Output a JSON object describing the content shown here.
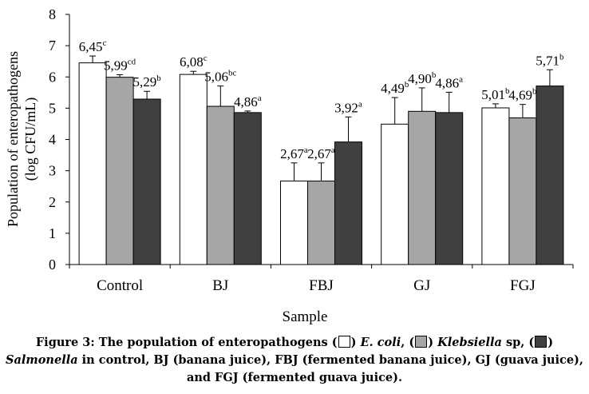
{
  "chart_data": {
    "type": "bar",
    "categories": [
      "Control",
      "BJ",
      "FBJ",
      "GJ",
      "FGJ"
    ],
    "series": [
      {
        "name": "E. coli",
        "color": "#ffffff",
        "values": [
          6.45,
          6.08,
          2.67,
          4.49,
          5.01
        ],
        "errors": [
          0.22,
          0.1,
          0.58,
          0.85,
          0.13
        ],
        "labels": [
          "6,45",
          "6,08",
          "2,67",
          "4,49",
          "5,01"
        ],
        "letters": [
          "c",
          "c",
          "a",
          "b",
          "b"
        ]
      },
      {
        "name": "Klebsiella sp",
        "color": "#a6a6a6",
        "values": [
          5.99,
          5.06,
          2.67,
          4.9,
          4.69
        ],
        "errors": [
          0.08,
          0.65,
          0.58,
          0.75,
          0.43
        ],
        "labels": [
          "5,99",
          "5,06",
          "2,67",
          "4,90",
          "4,69"
        ],
        "letters": [
          "cd",
          "bc",
          "a",
          "b",
          "b"
        ]
      },
      {
        "name": "Salmonella",
        "color": "#404040",
        "values": [
          5.29,
          4.86,
          3.92,
          4.86,
          5.71
        ],
        "errors": [
          0.25,
          0.05,
          0.8,
          0.65,
          0.52
        ],
        "labels": [
          "5,29",
          "4,86",
          "3,92",
          "4,86",
          "5,71"
        ],
        "letters": [
          "b",
          "a",
          "a",
          "a",
          "b"
        ]
      }
    ],
    "yticks": [
      "0",
      "1",
      "2",
      "3",
      "4",
      "5",
      "6",
      "7",
      "8"
    ],
    "ylim": [
      0,
      8
    ],
    "xlabel": "Sample",
    "ylabel_line1": "Population of enteropathogens",
    "ylabel_line2": "(log CFU/mL)",
    "grid": false
  },
  "caption": {
    "part1": "Figure 3: The population of enteropathogens (",
    "part2": ") ",
    "ecoli": "E. coli",
    "part3": ", (",
    "part4": ") ",
    "klebsiella": "Klebsiella",
    "part5": " sp, (",
    "part6": ")",
    "salmonella": "Salmonella",
    "part7": " in control, BJ (banana juice), FBJ (fermented banana juice), GJ (guava juice), and FGJ (fermented guava juice)."
  }
}
